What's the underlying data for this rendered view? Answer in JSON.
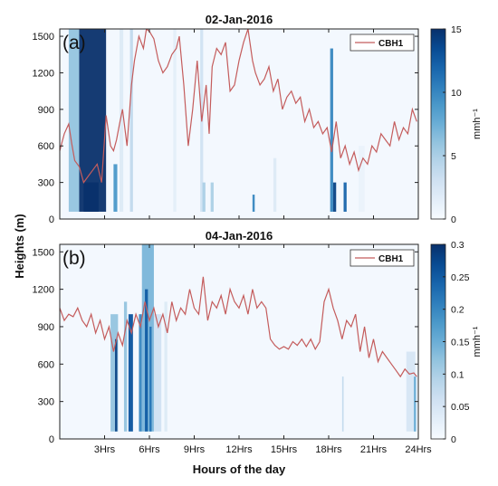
{
  "chart_data": [
    {
      "type": "heatmap",
      "panel_label": "(a)",
      "title": "02-Jan-2016",
      "ylabel": "Heights (m)",
      "xlabel": "",
      "xlim": [
        0,
        24
      ],
      "ylim": [
        0,
        1560
      ],
      "yticks": [
        0,
        300,
        600,
        900,
        1200,
        1500
      ],
      "xticks": [
        3,
        6,
        9,
        12,
        15,
        18,
        21,
        24
      ],
      "grid": false,
      "legend": {
        "position": "top-right",
        "entries": [
          "CBH1"
        ]
      },
      "colorbar": {
        "min": 0,
        "max": 15,
        "ticks": [
          0,
          5,
          10,
          15
        ],
        "unit": "mmh⁻¹"
      },
      "line_color": "#c45c5c",
      "rain_bands": [
        {
          "x0": 0.6,
          "x1": 1.3,
          "top": 1560,
          "value": 6
        },
        {
          "x0": 1.3,
          "x1": 3.1,
          "top": 1560,
          "value": 15
        },
        {
          "x0": 1.6,
          "x1": 2.6,
          "top": 300,
          "value": 15
        },
        {
          "x0": 3.6,
          "x1": 3.85,
          "top": 450,
          "value": 9
        },
        {
          "x0": 4.0,
          "x1": 4.25,
          "top": 1560,
          "value": 2
        },
        {
          "x0": 4.7,
          "x1": 4.9,
          "top": 1560,
          "value": 4
        },
        {
          "x0": 7.6,
          "x1": 7.8,
          "top": 1560,
          "value": 1.5
        },
        {
          "x0": 9.4,
          "x1": 9.6,
          "top": 1560,
          "value": 3
        },
        {
          "x0": 9.55,
          "x1": 9.75,
          "top": 300,
          "value": 5
        },
        {
          "x0": 10.1,
          "x1": 10.3,
          "top": 300,
          "value": 5
        },
        {
          "x0": 12.9,
          "x1": 13.05,
          "top": 200,
          "value": 10
        },
        {
          "x0": 14.3,
          "x1": 14.5,
          "top": 500,
          "value": 2
        },
        {
          "x0": 18.1,
          "x1": 18.3,
          "top": 1400,
          "value": 10
        },
        {
          "x0": 18.3,
          "x1": 18.5,
          "top": 300,
          "value": 14
        },
        {
          "x0": 19.0,
          "x1": 19.2,
          "top": 300,
          "value": 12
        },
        {
          "x0": 20.0,
          "x1": 20.4,
          "top": 600,
          "value": 1
        }
      ],
      "series": [
        {
          "name": "CBH1",
          "x": [
            0,
            0.3,
            0.6,
            0.8,
            1.0,
            1.3,
            1.6,
            1.9,
            2.2,
            2.5,
            2.8,
            3.1,
            3.4,
            3.6,
            3.8,
            4.0,
            4.2,
            4.5,
            4.8,
            5.0,
            5.3,
            5.6,
            5.8,
            6.0,
            6.3,
            6.6,
            6.9,
            7.2,
            7.5,
            7.8,
            8.0,
            8.3,
            8.6,
            8.9,
            9.2,
            9.5,
            9.8,
            10.0,
            10.2,
            10.5,
            10.8,
            11.1,
            11.4,
            11.7,
            12.0,
            12.3,
            12.6,
            12.9,
            13.1,
            13.4,
            13.7,
            14.0,
            14.3,
            14.6,
            14.9,
            15.2,
            15.5,
            15.8,
            16.1,
            16.4,
            16.7,
            17.0,
            17.3,
            17.6,
            17.9,
            18.2,
            18.5,
            18.8,
            19.1,
            19.4,
            19.7,
            20.0,
            20.3,
            20.6,
            20.9,
            21.2,
            21.5,
            21.8,
            22.1,
            22.4,
            22.7,
            23.0,
            23.3,
            23.6,
            23.9
          ],
          "y": [
            560,
            700,
            780,
            620,
            480,
            430,
            300,
            350,
            400,
            450,
            300,
            850,
            600,
            560,
            650,
            780,
            900,
            600,
            1100,
            1300,
            1500,
            1400,
            1560,
            1540,
            1480,
            1300,
            1200,
            1250,
            1350,
            1400,
            1500,
            1100,
            600,
            900,
            1300,
            800,
            1100,
            700,
            1250,
            1400,
            1350,
            1450,
            1050,
            1100,
            1300,
            1450,
            1560,
            1300,
            1200,
            1100,
            1150,
            1250,
            1050,
            1150,
            900,
            1000,
            1050,
            950,
            1000,
            800,
            900,
            750,
            800,
            700,
            750,
            550,
            800,
            500,
            600,
            450,
            550,
            400,
            500,
            450,
            600,
            550,
            700,
            650,
            600,
            800,
            650,
            750,
            700,
            900,
            800
          ]
        }
      ]
    },
    {
      "type": "heatmap",
      "panel_label": "(b)",
      "title": "04-Jan-2016",
      "ylabel": "Heights (m)",
      "xlabel": "Hours of the day",
      "xlim": [
        0,
        24
      ],
      "ylim": [
        0,
        1560
      ],
      "yticks": [
        0,
        300,
        600,
        900,
        1200,
        1500
      ],
      "xticks": [
        3,
        6,
        9,
        12,
        15,
        18,
        21,
        24
      ],
      "xticklabels": [
        "3Hrs",
        "6Hrs",
        "9Hrs",
        "12Hrs",
        "15Hrs",
        "18Hrs",
        "21Hrs",
        "24Hrs"
      ],
      "grid": false,
      "legend": {
        "position": "top-right",
        "entries": [
          "CBH1"
        ]
      },
      "colorbar": {
        "min": 0,
        "max": 0.3,
        "ticks": [
          0,
          0.05,
          0.1,
          0.15,
          0.2,
          0.25,
          0.3
        ],
        "unit": "mmh⁻¹"
      },
      "line_color": "#c45c5c",
      "rain_bands": [
        {
          "x0": 3.4,
          "x1": 3.9,
          "top": 1000,
          "value": 0.12
        },
        {
          "x0": 3.7,
          "x1": 3.85,
          "top": 800,
          "value": 0.28
        },
        {
          "x0": 4.3,
          "x1": 4.5,
          "top": 1100,
          "value": 0.12
        },
        {
          "x0": 4.6,
          "x1": 4.9,
          "top": 1000,
          "value": 0.26
        },
        {
          "x0": 5.3,
          "x1": 5.5,
          "top": 1000,
          "value": 0.2
        },
        {
          "x0": 5.5,
          "x1": 6.3,
          "top": 1560,
          "value": 0.14
        },
        {
          "x0": 5.7,
          "x1": 5.9,
          "top": 1200,
          "value": 0.25
        },
        {
          "x0": 6.0,
          "x1": 6.15,
          "top": 900,
          "value": 0.22
        },
        {
          "x0": 6.3,
          "x1": 6.8,
          "top": 1000,
          "value": 0.06
        },
        {
          "x0": 7.0,
          "x1": 7.2,
          "top": 1100,
          "value": 0.04
        },
        {
          "x0": 18.9,
          "x1": 19.0,
          "top": 500,
          "value": 0.08
        },
        {
          "x0": 23.2,
          "x1": 23.8,
          "top": 700,
          "value": 0.05
        },
        {
          "x0": 23.7,
          "x1": 23.85,
          "top": 500,
          "value": 0.15
        }
      ],
      "series": [
        {
          "name": "CBH1",
          "x": [
            0,
            0.3,
            0.6,
            0.9,
            1.2,
            1.5,
            1.8,
            2.1,
            2.4,
            2.7,
            3.0,
            3.3,
            3.6,
            3.9,
            4.2,
            4.5,
            4.8,
            5.1,
            5.4,
            5.7,
            6.0,
            6.3,
            6.6,
            6.9,
            7.2,
            7.5,
            7.8,
            8.1,
            8.4,
            8.7,
            9.0,
            9.3,
            9.6,
            9.9,
            10.2,
            10.5,
            10.8,
            11.1,
            11.4,
            11.7,
            12.0,
            12.3,
            12.6,
            12.9,
            13.2,
            13.5,
            13.8,
            14.1,
            14.4,
            14.7,
            15.0,
            15.3,
            15.6,
            15.9,
            16.2,
            16.5,
            16.8,
            17.1,
            17.4,
            17.7,
            18.0,
            18.3,
            18.6,
            18.9,
            19.2,
            19.5,
            19.8,
            20.1,
            20.4,
            20.7,
            21.0,
            21.3,
            21.6,
            21.9,
            22.2,
            22.5,
            22.8,
            23.1,
            23.4,
            23.7,
            23.9
          ],
          "y": [
            1050,
            950,
            1000,
            980,
            1050,
            950,
            900,
            1000,
            850,
            950,
            800,
            900,
            700,
            850,
            750,
            950,
            850,
            1000,
            900,
            1100,
            950,
            1050,
            900,
            1000,
            850,
            1100,
            950,
            1050,
            1000,
            1200,
            1050,
            1000,
            1300,
            950,
            1100,
            1050,
            1150,
            1000,
            1200,
            1100,
            1050,
            1150,
            1000,
            1200,
            1050,
            1100,
            1050,
            800,
            750,
            720,
            740,
            720,
            780,
            750,
            800,
            740,
            800,
            720,
            780,
            1100,
            1200,
            1050,
            950,
            800,
            950,
            900,
            1000,
            700,
            900,
            650,
            800,
            620,
            700,
            650,
            600,
            550,
            500,
            560,
            520,
            530,
            500
          ]
        }
      ]
    }
  ]
}
